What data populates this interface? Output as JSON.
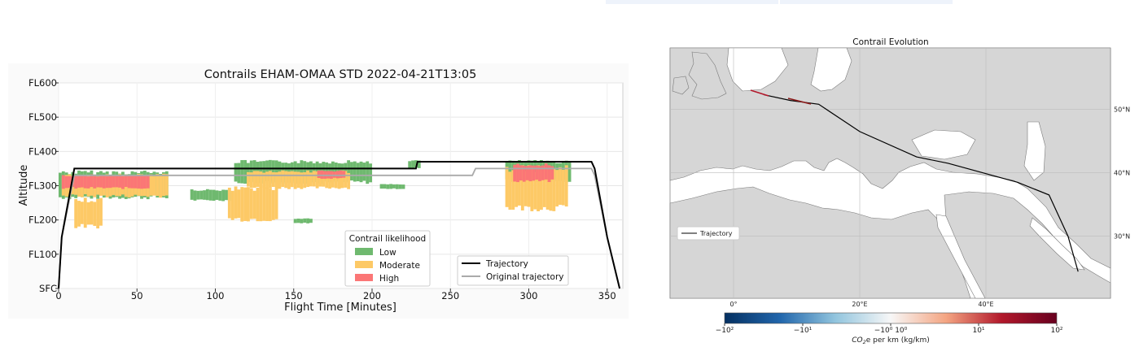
{
  "tabs": [
    "",
    ""
  ],
  "chart_data": [
    {
      "type": "line",
      "title": "Contrails EHAM-OMAA STD 2022-04-21T13:05",
      "xlabel": "Flight Time [Minutes]",
      "ylabel": "Altitude",
      "xlim": [
        0,
        360
      ],
      "ylim": [
        0,
        600
      ],
      "x_ticks": [
        0,
        50,
        100,
        150,
        200,
        250,
        300,
        350
      ],
      "y_ticks": [
        {
          "value": 0,
          "label": "SFC"
        },
        {
          "value": 100,
          "label": "FL100"
        },
        {
          "value": 200,
          "label": "FL200"
        },
        {
          "value": 300,
          "label": "FL300"
        },
        {
          "value": 400,
          "label": "FL400"
        },
        {
          "value": 500,
          "label": "FL500"
        },
        {
          "value": 600,
          "label": "FL600"
        }
      ],
      "grid": true,
      "likelihood_legend": {
        "title": "Contrail likelihood",
        "placement": "bottom-center",
        "items": [
          {
            "label": "Low",
            "color": "#6fb96f"
          },
          {
            "label": "Moderate",
            "color": "#fdc966"
          },
          {
            "label": "High",
            "color": "#fb7676"
          }
        ]
      },
      "trajectory_legend": {
        "placement": "bottom-right"
      },
      "series": [
        {
          "name": "Trajectory",
          "color": "#000000",
          "x": [
            0,
            2,
            10,
            226,
            228,
            229,
            340,
            342,
            350,
            358
          ],
          "y": [
            0,
            150,
            350,
            350,
            350,
            370,
            370,
            350,
            150,
            0
          ]
        },
        {
          "name": "Original trajectory",
          "color": "#aaaaaa",
          "x": [
            0,
            2,
            10,
            264,
            266,
            340,
            342,
            350,
            358
          ],
          "y": [
            0,
            150,
            330,
            330,
            350,
            350,
            330,
            150,
            0
          ]
        }
      ],
      "contrail_regions": [
        {
          "likelihood": "Low",
          "x0": 0,
          "x1": 70,
          "y0": 260,
          "y1": 345
        },
        {
          "likelihood": "Moderate",
          "x0": 2,
          "x1": 70,
          "y0": 265,
          "y1": 335
        },
        {
          "likelihood": "High",
          "x0": 2,
          "x1": 58,
          "y0": 290,
          "y1": 333
        },
        {
          "likelihood": "Moderate",
          "x0": 10,
          "x1": 28,
          "y0": 175,
          "y1": 265
        },
        {
          "likelihood": "Low",
          "x0": 84,
          "x1": 110,
          "y0": 255,
          "y1": 290
        },
        {
          "likelihood": "Moderate",
          "x0": 108,
          "x1": 140,
          "y0": 195,
          "y1": 300
        },
        {
          "likelihood": "Low",
          "x0": 150,
          "x1": 162,
          "y0": 190,
          "y1": 205
        },
        {
          "likelihood": "Moderate",
          "x0": 120,
          "x1": 185,
          "y0": 290,
          "y1": 345
        },
        {
          "likelihood": "Low",
          "x0": 112,
          "x1": 200,
          "y0": 305,
          "y1": 375
        },
        {
          "likelihood": "High",
          "x0": 165,
          "x1": 183,
          "y0": 320,
          "y1": 345
        },
        {
          "likelihood": "Low",
          "x0": 205,
          "x1": 220,
          "y0": 290,
          "y1": 305
        },
        {
          "likelihood": "Low",
          "x0": 223,
          "x1": 230,
          "y0": 350,
          "y1": 375
        },
        {
          "likelihood": "Low",
          "x0": 285,
          "x1": 326,
          "y0": 310,
          "y1": 375
        },
        {
          "likelihood": "Moderate",
          "x0": 285,
          "x1": 325,
          "y0": 225,
          "y1": 360
        },
        {
          "likelihood": "High",
          "x0": 290,
          "x1": 315,
          "y0": 310,
          "y1": 365
        }
      ]
    },
    {
      "type": "map",
      "title": "Contrail Evolution",
      "lon_ticks": [
        "0°",
        "20°E",
        "40°E"
      ],
      "lat_ticks": [
        "50°N",
        "40°N",
        "30°N"
      ],
      "legend": {
        "label": "Trajectory",
        "placement": "lower-left"
      },
      "route": [
        {
          "lon": 4.8,
          "lat": 52.3
        },
        {
          "lon": 9.0,
          "lat": 51.4
        },
        {
          "lon": 13.5,
          "lat": 50.8
        },
        {
          "lon": 20.0,
          "lat": 46.5
        },
        {
          "lon": 29.0,
          "lat": 42.5
        },
        {
          "lon": 34.0,
          "lat": 41.5
        },
        {
          "lon": 45.0,
          "lat": 38.5
        },
        {
          "lon": 50.0,
          "lat": 36.5
        },
        {
          "lon": 53.0,
          "lat": 30.0
        },
        {
          "lon": 54.6,
          "lat": 24.4
        }
      ],
      "colorbar": {
        "label": "CO₂e per km (kg/km)",
        "label_main": "CO",
        "label_sub": "2",
        "label_tail": "e per km (kg/km)",
        "ticks": [
          "−10²",
          "−10¹",
          "−10⁰ 10⁰",
          "10¹",
          "10²"
        ],
        "colors": [
          "#053061",
          "#2166ac",
          "#92c5de",
          "#f7f7f7",
          "#f4a582",
          "#b2182b",
          "#67001f"
        ]
      }
    }
  ]
}
